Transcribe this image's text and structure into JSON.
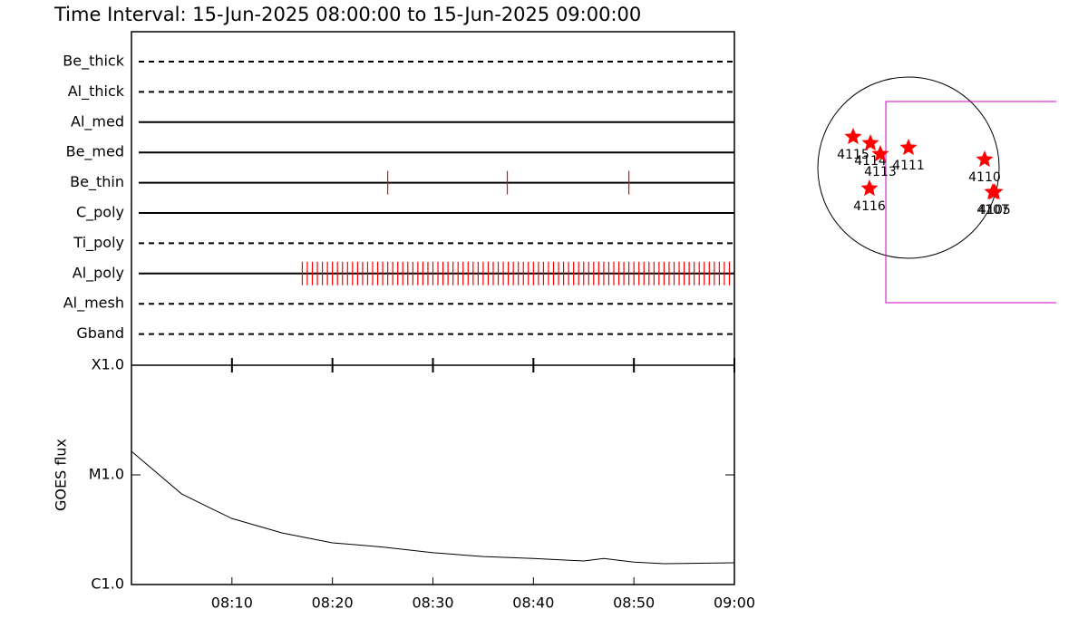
{
  "chart_data": [
    {
      "type": "timeline",
      "title": "Time Interval: 15-Jun-2025 08:00:00 to 15-Jun-2025 09:00:00",
      "xlim": [
        480,
        540
      ],
      "color": "#ff0000",
      "filters": [
        {
          "name": "Be_thick",
          "style": "dashed",
          "events": []
        },
        {
          "name": "Al_thick",
          "style": "dashed",
          "events": []
        },
        {
          "name": "Al_med",
          "style": "solid",
          "events": []
        },
        {
          "name": "Be_med",
          "style": "solid",
          "events": []
        },
        {
          "name": "Be_thin",
          "style": "solid",
          "events": [
            505.5,
            517.4,
            529.5
          ]
        },
        {
          "name": "C_poly",
          "style": "solid",
          "events": []
        },
        {
          "name": "Ti_poly",
          "style": "dashed",
          "events": []
        },
        {
          "name": "Al_poly",
          "style": "solid",
          "events": [
            497,
            497.5,
            498,
            498.5,
            499,
            499.5,
            500,
            500.5,
            501,
            501.5,
            502,
            502.5,
            503,
            503.5,
            504,
            504.5,
            505,
            505.5,
            506,
            506.5,
            507,
            507.5,
            508,
            508.5,
            509,
            509.5,
            510,
            510.5,
            511,
            511.5,
            512,
            512.5,
            513,
            513.5,
            514,
            514.5,
            515,
            515.5,
            516,
            516.5,
            517,
            517.5,
            518,
            518.5,
            519,
            519.5,
            520,
            520.5,
            521,
            521.5,
            522,
            522.5,
            523,
            523.5,
            524,
            524.5,
            525,
            525.5,
            526,
            526.5,
            527,
            527.5,
            528,
            528.5,
            529,
            529.5,
            530,
            530.5,
            531,
            531.5,
            532,
            532.5,
            533,
            533.5,
            534,
            534.5,
            535,
            535.5,
            536,
            536.5,
            537,
            537.5,
            538,
            538.5,
            539,
            539.5
          ]
        },
        {
          "name": "Al_mesh",
          "style": "dashed",
          "events": []
        },
        {
          "name": "Gband",
          "style": "dashed",
          "events": []
        }
      ]
    },
    {
      "type": "line",
      "ylabel": "GOES flux",
      "log_y": true,
      "color": "#000000",
      "xlim": [
        480,
        540
      ],
      "xticks": [
        {
          "value": 490,
          "label": "08:10"
        },
        {
          "value": 500,
          "label": "08:20"
        },
        {
          "value": 510,
          "label": "08:30"
        },
        {
          "value": 520,
          "label": "08:40"
        },
        {
          "value": 530,
          "label": "08:50"
        },
        {
          "value": 540,
          "label": "09:00"
        }
      ],
      "ylim": [
        1e-06,
        0.0001
      ],
      "yticks": [
        {
          "value": 1e-06,
          "label": "C1.0"
        },
        {
          "value": 1e-05,
          "label": "M1.0"
        },
        {
          "value": 0.0001,
          "label": "X1.0"
        }
      ],
      "x": [
        480,
        485,
        488,
        490,
        495,
        500,
        505,
        510,
        515,
        520,
        525,
        527,
        530,
        533,
        540
      ],
      "values": [
        1.64e-05,
        6.7e-06,
        4.9e-06,
        4e-06,
        2.95e-06,
        2.4e-06,
        2.2e-06,
        1.95e-06,
        1.8e-06,
        1.73e-06,
        1.64e-06,
        1.73e-06,
        1.6e-06,
        1.55e-06,
        1.58e-06
      ]
    },
    {
      "type": "scatter",
      "color": "#ff0000",
      "solar_radius": 960,
      "fov_x": [
        -240,
        1565
      ],
      "fov_y": [
        -1430,
        701
      ],
      "fov_color": "#cc00cc",
      "labels": [
        "4115",
        "4114",
        "4113",
        "4111",
        "4110",
        "4116",
        "4105",
        "4107"
      ],
      "x": [
        -586,
        -403,
        -298,
        0,
        806,
        -413,
        912,
        893
      ],
      "values": [
        326,
        259,
        144,
        211,
        86,
        -221,
        -259,
        -259
      ]
    }
  ]
}
